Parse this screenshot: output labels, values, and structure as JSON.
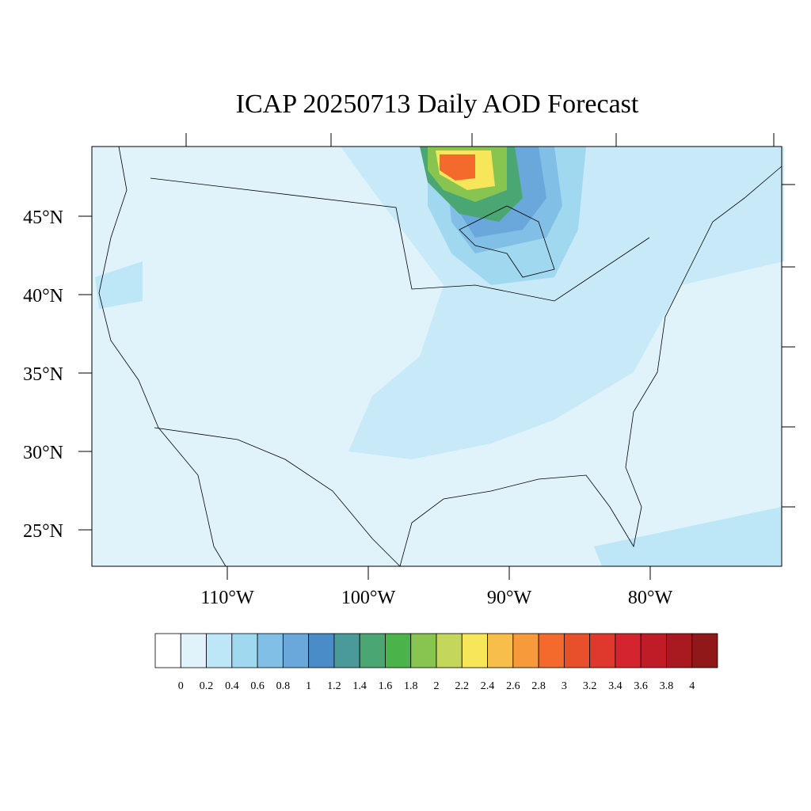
{
  "title": "ICAP 20250713 Daily AOD Forecast",
  "map": {
    "lat_labels": [
      "45°N",
      "40°N",
      "35°N",
      "30°N",
      "25°N"
    ],
    "lon_labels": [
      "110°W",
      "100°W",
      "90°W",
      "80°W"
    ]
  },
  "colorbar": {
    "labels": [
      0,
      0.2,
      0.4,
      0.6,
      0.8,
      1,
      1.2,
      1.4,
      1.6,
      1.8,
      2,
      2.2,
      2.4,
      2.6,
      2.8,
      3,
      3.2,
      3.4,
      3.6,
      3.8,
      4
    ],
    "colors": [
      "#ffffff",
      "#e0f3fb",
      "#bde6f7",
      "#a0d8f0",
      "#82bfe6",
      "#6aa8db",
      "#4a8cc8",
      "#4a9a9a",
      "#4aa774",
      "#4ab44a",
      "#88c450",
      "#c4d75a",
      "#f7e65a",
      "#f7be4a",
      "#f79a3c",
      "#f46a2c",
      "#e8502c",
      "#e0382c",
      "#d42430",
      "#c01c28",
      "#a81a20",
      "#901818"
    ]
  }
}
